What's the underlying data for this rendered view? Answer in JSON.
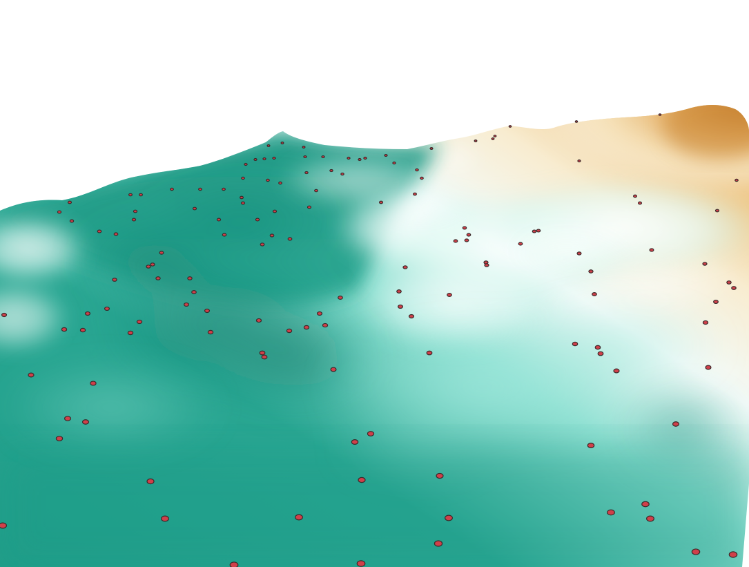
{
  "scene": {
    "kind": "3d-terrain-surface",
    "background_color": "#ffffff",
    "surface_colormap": [
      "#1a9a86",
      "#5fcdbd",
      "#c8f3ec",
      "#ffffff",
      "#f6e2b4",
      "#e8b060",
      "#c88030"
    ],
    "marker": {
      "shape": "circle",
      "fill_color": "#d0404a",
      "outline_color": "#3a2a2a"
    },
    "has_axes": false,
    "has_legend": false,
    "has_text": false
  }
}
